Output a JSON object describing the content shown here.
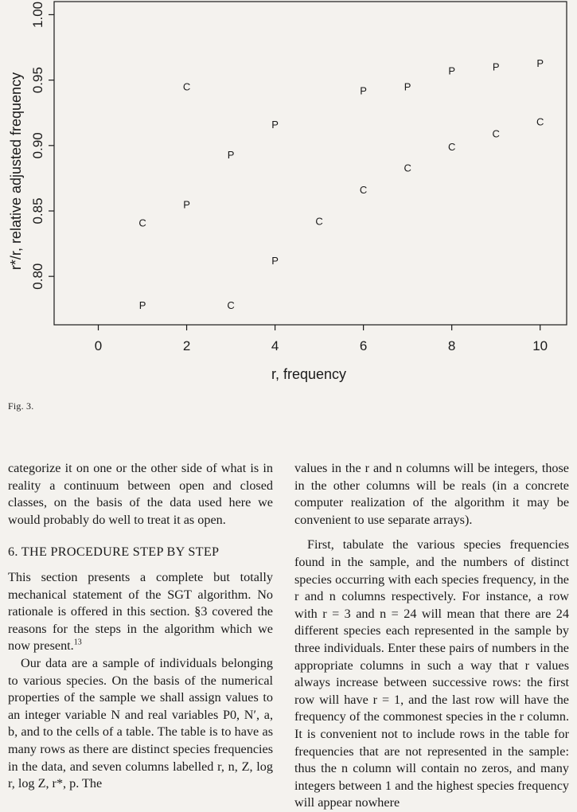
{
  "figure": {
    "caption": "Fig. 3.",
    "chart_data": {
      "type": "scatter",
      "xlabel": "r, frequency",
      "ylabel": "r*/r, relative adjusted frequency",
      "xlim": [
        -1,
        10.6
      ],
      "ylim": [
        0.763,
        1.01
      ],
      "x_ticks": [
        0,
        2,
        4,
        6,
        8,
        10
      ],
      "x_tick_labels": [
        "0",
        "2",
        "4",
        "6",
        "8",
        "10"
      ],
      "y_ticks": [
        0.8,
        0.85,
        0.9,
        0.95,
        1.0
      ],
      "y_tick_labels": [
        "0.80",
        "0.85",
        "0.90",
        "0.95",
        "1.00"
      ],
      "grid": false,
      "series": [
        {
          "marker": "P",
          "points": [
            {
              "x": 1,
              "y": 0.778
            },
            {
              "x": 2,
              "y": 0.855
            },
            {
              "x": 3,
              "y": 0.893
            },
            {
              "x": 4,
              "y": 0.812
            },
            {
              "x": 4,
              "y": 0.916
            },
            {
              "x": 6,
              "y": 0.942
            },
            {
              "x": 7,
              "y": 0.945
            },
            {
              "x": 8,
              "y": 0.957
            },
            {
              "x": 9,
              "y": 0.96
            },
            {
              "x": 10,
              "y": 0.963
            }
          ]
        },
        {
          "marker": "C",
          "points": [
            {
              "x": 1,
              "y": 0.841
            },
            {
              "x": 2,
              "y": 0.945
            },
            {
              "x": 3,
              "y": 0.778
            },
            {
              "x": 5,
              "y": 0.842
            },
            {
              "x": 6,
              "y": 0.866
            },
            {
              "x": 7,
              "y": 0.883
            },
            {
              "x": 8,
              "y": 0.899
            },
            {
              "x": 9,
              "y": 0.909
            },
            {
              "x": 10,
              "y": 0.918
            }
          ]
        }
      ]
    }
  },
  "left_column": {
    "paragraph_1": "categorize it on one or the other side of what is in reality a continuum between open and closed classes, on the basis of the data used here we would probably do well to treat it as open.",
    "section_heading": "6. THE PROCEDURE STEP BY STEP",
    "paragraph_2_text": "This section presents a complete but totally mechanical statement of the SGT algorithm. No rationale is offered in this section. §3 covered the reasons for the steps in the algorithm which we now present.",
    "paragraph_2_footnote": "13",
    "paragraph_3": "Our data are a sample of individuals belonging to various species. On the basis of the numerical properties of the sample we shall assign values to an integer variable N and real variables P0, N′, a, b, and to the cells of a table. The table is to have as many rows as there are distinct species frequencies in the data, and seven columns labelled r, n, Z, log r, log Z, r*, p. The"
  },
  "right_column": {
    "paragraph_1": "values in the r and n columns will be integers, those in the other columns will be reals (in a concrete computer realization of the algorithm it may be convenient to use separate arrays).",
    "paragraph_2": "First, tabulate the various species frequencies found in the sample, and the numbers of distinct species occurring with each species frequency, in the r and n columns respectively. For instance, a row with r = 3 and n = 24 will mean that there are 24 different species each represented in the sample by three individuals. Enter these pairs of numbers in the appropriate columns in such a way that r values always increase between successive rows: the first row will have r = 1, and the last row will have the frequency of the commonest species in the r column. It is convenient not to include rows in the table for frequencies that are not represented in the sample: thus the n column will contain no zeros, and many integers between 1 and the highest species frequency will appear nowhere"
  }
}
